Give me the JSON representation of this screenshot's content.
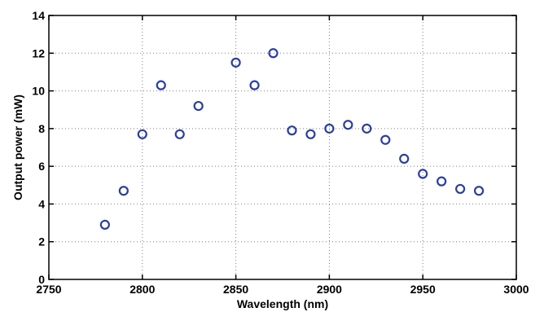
{
  "chart_data": {
    "type": "scatter",
    "xlabel": "Wavelength (nm)",
    "ylabel": "Output power (mW)",
    "xlim": [
      2750,
      3000
    ],
    "ylim": [
      0,
      14
    ],
    "xticks": [
      2750,
      2800,
      2850,
      2900,
      2950,
      3000
    ],
    "yticks": [
      0,
      2,
      4,
      6,
      8,
      10,
      12,
      14
    ],
    "grid": true,
    "grid_style": "dotted",
    "marker": "open-circle",
    "marker_color": "#2b3ea0",
    "series": [
      {
        "x": [
          2780,
          2790,
          2800,
          2810,
          2820,
          2830,
          2850,
          2860,
          2870,
          2880,
          2890,
          2900,
          2910,
          2920,
          2930,
          2940,
          2950,
          2960,
          2970,
          2980
        ],
        "y": [
          2.9,
          4.7,
          7.7,
          10.3,
          7.7,
          9.2,
          11.5,
          10.3,
          12.0,
          7.9,
          7.7,
          8.0,
          8.2,
          8.0,
          7.4,
          6.4,
          5.6,
          5.2,
          4.8,
          4.7
        ]
      }
    ]
  }
}
